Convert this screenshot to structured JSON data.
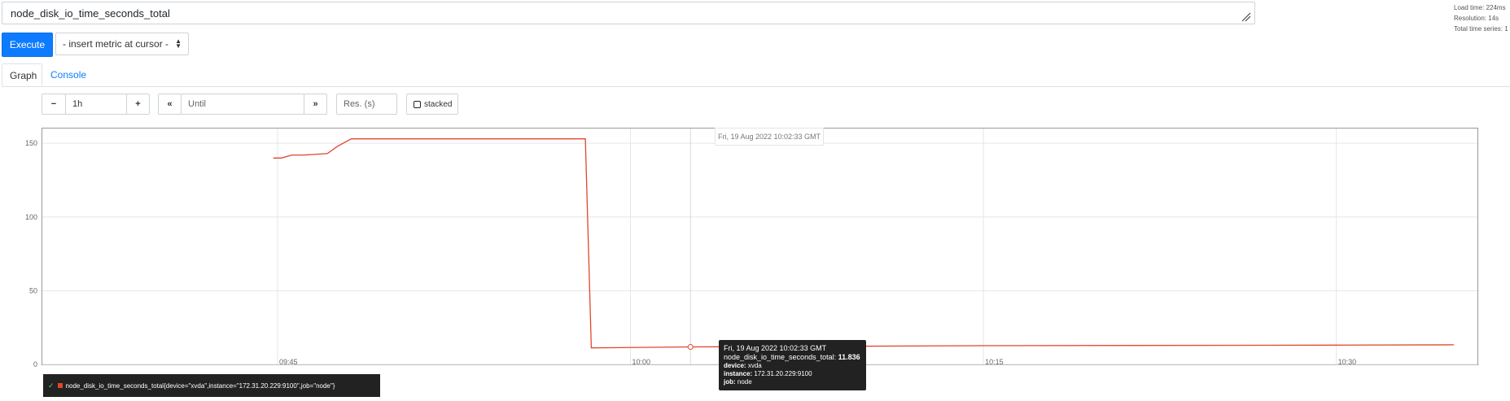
{
  "query": {
    "expression": "node_disk_io_time_seconds_total"
  },
  "stats": {
    "load_time": "Load time: 224ms",
    "resolution": "Resolution: 14s",
    "total_series": "Total time series: 1"
  },
  "toolbar": {
    "execute_label": "Execute",
    "insert_metric_label": "- insert metric at cursor -"
  },
  "tabs": [
    {
      "label": "Graph",
      "active": true
    },
    {
      "label": "Console",
      "active": false
    }
  ],
  "graph_controls": {
    "decrease_label": "−",
    "range_value": "1h",
    "increase_label": "+",
    "back_label": "«",
    "until_placeholder": "Until",
    "forward_label": "»",
    "resolution_placeholder": "Res. (s)",
    "stacked_label": "stacked"
  },
  "hover": {
    "date_label": "Fri, 19 Aug 2022 10:02:33 GMT",
    "tooltip_title": "Fri, 19 Aug 2022 10:02:33 GMT",
    "metric_name": "node_disk_io_time_seconds_total:",
    "metric_value": "11.836",
    "device_key": "device:",
    "device_value": "xvda",
    "instance_key": "instance:",
    "instance_value": "172.31.20.229:9100",
    "job_key": "job:",
    "job_value": "node"
  },
  "legend": {
    "series_label": "node_disk_io_time_seconds_total{device=\"xvda\",instance=\"172.31.20.229:9100\",job=\"node\"}"
  },
  "colors": {
    "series": "#e2462b",
    "accent": "#0d7bff"
  },
  "chart_data": {
    "type": "line",
    "x_unit": "time (HH:MM)",
    "xlim": [
      "09:35",
      "10:36"
    ],
    "ylim": [
      0,
      160
    ],
    "x_ticks": [
      "09:45",
      "10:00",
      "10:15",
      "10:30"
    ],
    "y_ticks": [
      0,
      50,
      100,
      150
    ],
    "grid": true,
    "legend_position": "bottom-left",
    "series": [
      {
        "name": "node_disk_io_time_seconds_total{device=\"xvda\",instance=\"172.31.20.229:9100\",job=\"node\"}",
        "x": [
          "09:44:49",
          "09:45:09",
          "09:45:37",
          "09:46:06",
          "09:47:07",
          "09:47:33",
          "09:48:08",
          "09:58:05",
          "09:58:20",
          "10:02:33",
          "10:15:00",
          "10:30:00",
          "10:35:00"
        ],
        "y": [
          140,
          140,
          142,
          142,
          143,
          148,
          153,
          153,
          11.2,
          11.836,
          12.7,
          13.1,
          13.3
        ]
      }
    ]
  }
}
